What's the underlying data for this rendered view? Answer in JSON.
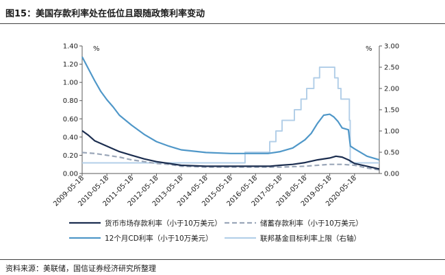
{
  "figure": {
    "title": "图15：美国存款利率处在低位且跟随政策利率变动",
    "source": "资料来源：美联储，国信证券经济研究所整理"
  },
  "chart_data": {
    "type": "line",
    "ylabel_left": "%",
    "ylabel_right": "%",
    "ylim_left": [
      0,
      1.4
    ],
    "ylim_right": [
      0,
      3
    ],
    "yticks_left": [
      "0.00",
      "0.20",
      "0.40",
      "0.60",
      "0.80",
      "1.00",
      "1.20",
      "1.40"
    ],
    "yticks_right": [
      "0.00",
      "0.50",
      "1.00",
      "1.50",
      "2.00",
      "2.50",
      "3.00"
    ],
    "xlim": [
      "2009-05-18",
      "2021-05-18"
    ],
    "xticks": [
      "2009-05-18",
      "2010-05-18",
      "2011-05-18",
      "2012-05-18",
      "2013-05-18",
      "2014-05-18",
      "2015-05-18",
      "2016-05-18",
      "2017-05-18",
      "2018-05-18",
      "2019-05-18",
      "2020-05-18"
    ],
    "grid": false,
    "legend_position": "bottom",
    "series": [
      {
        "name": "货币市场存款利率（小于10万美元）",
        "axis": "left",
        "color": "#1b2d4f",
        "dash": "solid",
        "points": [
          [
            "2009-05-18",
            0.47
          ],
          [
            "2009-08-18",
            0.42
          ],
          [
            "2009-11-18",
            0.36
          ],
          [
            "2010-05-18",
            0.3
          ],
          [
            "2010-11-18",
            0.24
          ],
          [
            "2011-05-18",
            0.2
          ],
          [
            "2011-11-18",
            0.16
          ],
          [
            "2012-05-18",
            0.13
          ],
          [
            "2012-11-18",
            0.11
          ],
          [
            "2013-05-18",
            0.09
          ],
          [
            "2014-05-18",
            0.08
          ],
          [
            "2015-05-18",
            0.08
          ],
          [
            "2016-05-18",
            0.08
          ],
          [
            "2016-12-18",
            0.08
          ],
          [
            "2017-05-18",
            0.09
          ],
          [
            "2017-11-18",
            0.1
          ],
          [
            "2018-05-18",
            0.12
          ],
          [
            "2018-11-18",
            0.15
          ],
          [
            "2019-05-18",
            0.17
          ],
          [
            "2019-08-18",
            0.19
          ],
          [
            "2019-11-18",
            0.18
          ],
          [
            "2020-02-18",
            0.15
          ],
          [
            "2020-05-18",
            0.11
          ],
          [
            "2020-11-18",
            0.08
          ],
          [
            "2021-05-18",
            0.05
          ]
        ]
      },
      {
        "name": "储蓄存款利率（小于10万美元）",
        "axis": "left",
        "color": "#9aa6b8",
        "dash": "dashed",
        "points": [
          [
            "2009-05-18",
            0.23
          ],
          [
            "2009-11-18",
            0.22
          ],
          [
            "2010-05-18",
            0.2
          ],
          [
            "2010-11-18",
            0.18
          ],
          [
            "2011-05-18",
            0.15
          ],
          [
            "2011-11-18",
            0.13
          ],
          [
            "2012-05-18",
            0.11
          ],
          [
            "2012-11-18",
            0.1
          ],
          [
            "2013-05-18",
            0.08
          ],
          [
            "2014-05-18",
            0.07
          ],
          [
            "2015-05-18",
            0.07
          ],
          [
            "2016-05-18",
            0.07
          ],
          [
            "2017-05-18",
            0.07
          ],
          [
            "2018-05-18",
            0.08
          ],
          [
            "2018-11-18",
            0.09
          ],
          [
            "2019-05-18",
            0.1
          ],
          [
            "2019-11-18",
            0.1
          ],
          [
            "2020-05-18",
            0.09
          ],
          [
            "2020-11-18",
            0.06
          ],
          [
            "2021-05-18",
            0.04
          ]
        ]
      },
      {
        "name": "12个月CD利率（小于10万美元）",
        "axis": "left",
        "color": "#4f97c8",
        "dash": "solid",
        "points": [
          [
            "2009-05-18",
            1.28
          ],
          [
            "2009-08-18",
            1.15
          ],
          [
            "2009-11-18",
            1.02
          ],
          [
            "2010-02-18",
            0.9
          ],
          [
            "2010-05-18",
            0.81
          ],
          [
            "2010-08-18",
            0.73
          ],
          [
            "2010-11-18",
            0.64
          ],
          [
            "2011-05-18",
            0.53
          ],
          [
            "2011-11-18",
            0.43
          ],
          [
            "2012-05-18",
            0.35
          ],
          [
            "2012-11-18",
            0.3
          ],
          [
            "2013-05-18",
            0.26
          ],
          [
            "2014-05-18",
            0.23
          ],
          [
            "2015-05-18",
            0.22
          ],
          [
            "2016-05-18",
            0.22
          ],
          [
            "2016-11-18",
            0.22
          ],
          [
            "2017-05-18",
            0.24
          ],
          [
            "2017-11-18",
            0.28
          ],
          [
            "2018-05-18",
            0.37
          ],
          [
            "2018-08-18",
            0.44
          ],
          [
            "2018-11-18",
            0.55
          ],
          [
            "2019-02-18",
            0.64
          ],
          [
            "2019-05-18",
            0.65
          ],
          [
            "2019-07-18",
            0.62
          ],
          [
            "2019-09-18",
            0.57
          ],
          [
            "2019-11-18",
            0.5
          ],
          [
            "2020-02-18",
            0.48
          ],
          [
            "2020-03-18",
            0.3
          ],
          [
            "2020-05-18",
            0.27
          ],
          [
            "2020-11-18",
            0.19
          ],
          [
            "2021-05-18",
            0.15
          ]
        ]
      },
      {
        "name": "联邦基金目标利率上限（右轴）",
        "axis": "right",
        "color": "#b3cfe8",
        "dash": "solid",
        "step": true,
        "points": [
          [
            "2009-05-18",
            0.25
          ],
          [
            "2015-12-16",
            0.5
          ],
          [
            "2016-12-14",
            0.75
          ],
          [
            "2017-03-15",
            1.0
          ],
          [
            "2017-06-14",
            1.25
          ],
          [
            "2017-12-13",
            1.5
          ],
          [
            "2018-03-21",
            1.75
          ],
          [
            "2018-06-13",
            2.0
          ],
          [
            "2018-09-26",
            2.25
          ],
          [
            "2018-12-19",
            2.5
          ],
          [
            "2019-07-31",
            2.25
          ],
          [
            "2019-09-18",
            2.0
          ],
          [
            "2019-10-30",
            1.75
          ],
          [
            "2020-03-03",
            1.25
          ],
          [
            "2020-03-15",
            0.25
          ],
          [
            "2021-05-18",
            0.25
          ]
        ]
      }
    ]
  }
}
